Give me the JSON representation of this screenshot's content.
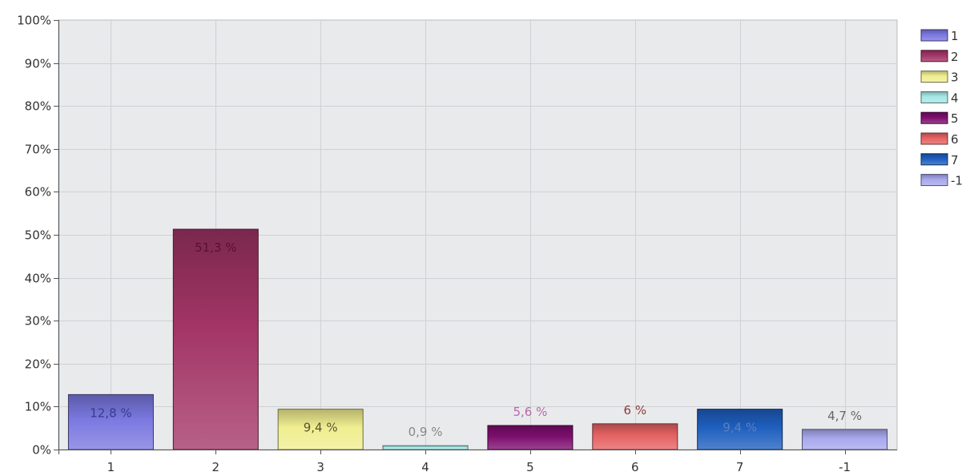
{
  "chart_data": {
    "type": "bar",
    "categories": [
      "1",
      "2",
      "3",
      "4",
      "5",
      "6",
      "7",
      "-1"
    ],
    "values": [
      12.8,
      51.3,
      9.4,
      0.9,
      5.6,
      6,
      9.4,
      4.7
    ],
    "data_labels": [
      "12,8 %",
      "51,3 %",
      "9,4 %",
      "0,9 %",
      "5,6 %",
      "6 %",
      "9,4 %",
      "4,7 %"
    ],
    "ylim": [
      0,
      100
    ],
    "y_ticks": [
      0,
      10,
      20,
      30,
      40,
      50,
      60,
      70,
      80,
      90,
      100
    ],
    "y_tick_labels": [
      "0%",
      "10%",
      "20%",
      "30%",
      "40%",
      "50%",
      "60%",
      "70%",
      "80%",
      "90%",
      "100%"
    ],
    "grid": true,
    "legend": {
      "position": "right",
      "entries": [
        "1",
        "2",
        "3",
        "4",
        "5",
        "6",
        "7",
        "-1"
      ]
    },
    "colors": [
      "#7b78e0",
      "#a33566",
      "#f0ee90",
      "#a6e8e6",
      "#7d0e6e",
      "#e56262",
      "#1e5fbf",
      "#a8a8ee"
    ],
    "data_label_colors": [
      "#3a3a8a",
      "#5a1030",
      "#555533",
      "#888888",
      "#b76aaa",
      "#8a3d3d",
      "#5a7fbf",
      "#666666"
    ],
    "plot_background": "#e9eaec",
    "grid_color": "#cfd1d4"
  }
}
